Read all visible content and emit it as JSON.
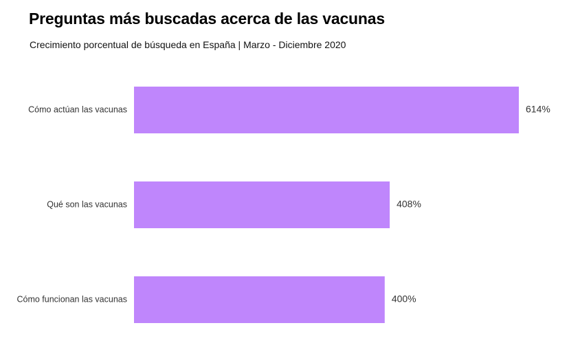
{
  "title": "Preguntas más buscadas acerca de las vacunas",
  "subtitle": "Crecimiento porcentual de búsqueda en España | Marzo - Diciembre 2020",
  "chart_data": {
    "type": "bar",
    "orientation": "horizontal",
    "categories": [
      "Cómo actúan las vacunas",
      "Qué son las vacunas",
      "Cómo funcionan las vacunas"
    ],
    "values": [
      614,
      408,
      400
    ],
    "value_labels": [
      "614%",
      "408%",
      "400%"
    ],
    "xlim": [
      0,
      614
    ],
    "grid": false,
    "legend": "none",
    "colors": {
      "bar": "#bf86fc"
    }
  }
}
